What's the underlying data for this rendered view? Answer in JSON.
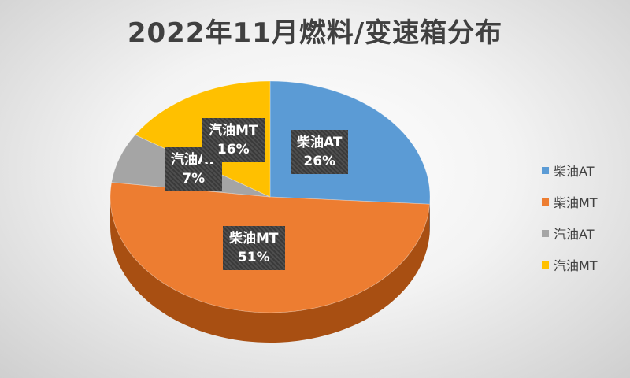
{
  "chart_data": {
    "type": "pie",
    "title": "2022年11月燃料/变速箱分布",
    "categories": [
      "柴油AT",
      "柴油MT",
      "汽油AT",
      "汽油MT"
    ],
    "values": [
      26,
      51,
      7,
      16
    ],
    "value_labels": [
      "26%",
      "51%",
      "7%",
      "16%"
    ],
    "colors": [
      "#5B9BD5",
      "#ED7D31",
      "#A5A5A5",
      "#FFC000"
    ],
    "side_colors": [
      "#35689a",
      "#a84f12",
      "#707070",
      "#b38600"
    ],
    "legend": "right",
    "style": "3d"
  }
}
